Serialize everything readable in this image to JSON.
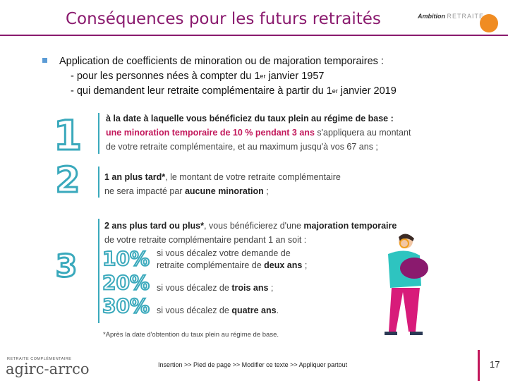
{
  "header": {
    "title": "Conséquences pour les futurs retraités",
    "brand_a": "Ambition",
    "brand_b": "RETRAITE"
  },
  "intro": {
    "line1": "Application de coefficients de minoration ou de majoration temporaires :",
    "line2_a": "- pour les personnes nées à compter du 1",
    "line2_sup": "er",
    "line2_b": " janvier 1957",
    "line3_a": "- qui demandent leur retraite complémentaire à partir du 1",
    "line3_sup": "er",
    "line3_b": " janvier 2019"
  },
  "section1": {
    "number": "1",
    "l1": "à la date à laquelle vous bénéficiez du taux plein au régime de base :",
    "l2_bold": "une minoration temporaire de 10 % pendant 3 ans",
    "l2_rest": " s'appliquera au montant",
    "l3": "de votre retraite complémentaire, et au maximum jusqu'à vos 67 ans ;"
  },
  "section2": {
    "number": "2",
    "l1_bold": "1 an plus tard*",
    "l1_rest": ", le montant de votre retraite complémentaire",
    "l2_a": "ne sera impacté par ",
    "l2_bold": "aucune minoration",
    "l2_b": " ;"
  },
  "section3": {
    "number": "3",
    "l1_bold": "2 ans plus tard ou plus*",
    "l1_mid": ", vous bénéficierez d'une ",
    "l1_bold2": "majoration temporaire",
    "l2": "de votre retraite complémentaire pendant 1 an soit :",
    "rows": [
      {
        "pct": "10%",
        "a": "si vous décalez votre demande de",
        "b": "retraite complémentaire de ",
        "bold": "deux ans",
        "c": " ;"
      },
      {
        "pct": "20%",
        "a": "",
        "b": "si vous décalez de ",
        "bold": "trois ans",
        "c": " ;"
      },
      {
        "pct": "30%",
        "a": "",
        "b": "si vous décalez de ",
        "bold": "quatre ans",
        "c": "."
      }
    ]
  },
  "footnote": "*Après la date d'obtention du taux plein au régime de base.",
  "footer": {
    "logo_top": "RETRAITE COMPLÉMENTAIRE",
    "logo": "agirc-arrco",
    "text": "Insertion >> Pied de page >> Modifier ce texte >> Appliquer partout",
    "page": "17"
  },
  "colors": {
    "accent": "#8a1a6e",
    "teal": "#3aa9bc",
    "pink": "#c2185b"
  }
}
